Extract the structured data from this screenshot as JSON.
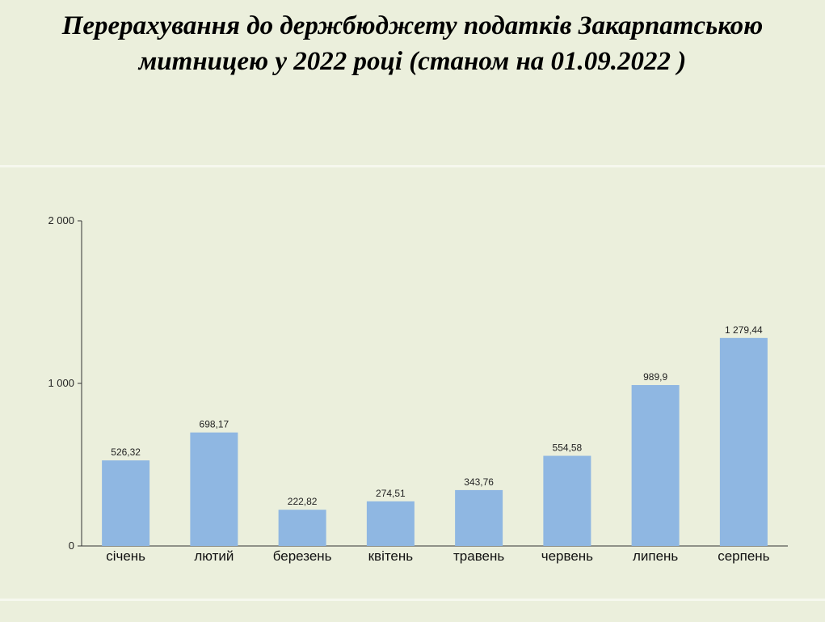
{
  "title": {
    "line1": "Перерахування до держбюджету податків Закарпатською",
    "line2": "митницею  у 2022 році  (станом на 01.09.2022 )"
  },
  "colors": {
    "background": "#ebefdc",
    "bar": "#8fb7e2",
    "axis": "#333333"
  },
  "chart_data": {
    "type": "bar",
    "title": "Перерахування до держбюджету податків Закарпатською митницею  у 2022 році  (станом на 01.09.2022 )",
    "xlabel": "",
    "ylabel": "",
    "categories": [
      "січень",
      "лютий",
      "березень",
      "квітень",
      "травень",
      "червень",
      "липень",
      "серпень"
    ],
    "values": [
      526.32,
      698.17,
      222.82,
      274.51,
      343.76,
      554.58,
      989.9,
      1279.44
    ],
    "value_labels": [
      "526,32",
      "698,17",
      "222,82",
      "274,51",
      "343,76",
      "554,58",
      "989,9",
      "1 279,44"
    ],
    "ylim": [
      0,
      2000
    ],
    "yticks": [
      0,
      1000,
      2000
    ],
    "ytick_labels": [
      "0",
      "1 000",
      "2 000"
    ],
    "grid": false,
    "legend": "none"
  }
}
